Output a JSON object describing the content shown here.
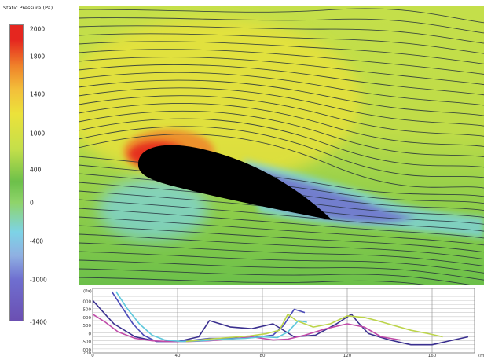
{
  "legend": {
    "title": "Static Pressure (Pa)",
    "ticks": [
      "2000",
      "1800",
      "1400",
      "1000",
      "400",
      "0",
      "-400",
      "-1000",
      "-1400"
    ]
  },
  "colors": {
    "red": "#e5261f",
    "orange": "#f0842a",
    "yellow": "#ece23a",
    "yellow_green": "#c4df4a",
    "green": "#6cc04a",
    "light_green": "#8fd46a",
    "cyan": "#7dd3e6",
    "light_blue": "#8fb0e2",
    "blue_violet": "#6f6fd0",
    "violet": "#6b4fb2",
    "airfoil": "#000000",
    "streamline": "#25303c"
  },
  "chart_data": [
    {
      "type": "heatmap",
      "title": "Static Pressure (Pa)",
      "colorbar_range": [
        -1400,
        2000
      ],
      "colorbar_ticks": [
        2000,
        1800,
        1400,
        1000,
        400,
        0,
        -400,
        -1000,
        -1400
      ],
      "features": [
        "airfoil cross-section",
        "streamlines"
      ]
    },
    {
      "type": "line",
      "ylabel": "(Pa)",
      "xlim": [
        0,
        180
      ],
      "ylim": [
        -1200,
        2500
      ],
      "y_ticks": [
        2000,
        1500,
        1000,
        500,
        0,
        -500,
        -1000,
        -1200
      ],
      "x_ticks": [
        0,
        40,
        80,
        120,
        160
      ],
      "x_unit_partial": "(mm",
      "grid": true,
      "series": [
        {
          "color": "#3a2f8f",
          "points": [
            [
              0,
              2050
            ],
            [
              10,
              600
            ],
            [
              20,
              -200
            ],
            [
              30,
              -480
            ],
            [
              40,
              -500
            ],
            [
              50,
              -200
            ],
            [
              55,
              800
            ],
            [
              65,
              400
            ],
            [
              75,
              300
            ],
            [
              85,
              600
            ],
            [
              95,
              -200
            ],
            [
              105,
              -100
            ],
            [
              115,
              600
            ],
            [
              122,
              1200
            ],
            [
              125,
              700
            ],
            [
              130,
              0
            ],
            [
              140,
              -400
            ],
            [
              150,
              -700
            ],
            [
              160,
              -700
            ],
            [
              170,
              -400
            ],
            [
              177,
              -200
            ]
          ]
        },
        {
          "color": "#4a4ab8",
          "points": [
            [
              9,
              2600
            ],
            [
              14,
              1600
            ],
            [
              19,
              600
            ],
            [
              24,
              -100
            ],
            [
              30,
              -500
            ],
            [
              38,
              -500
            ],
            [
              45,
              -450
            ],
            [
              55,
              -300
            ],
            [
              65,
              -300
            ],
            [
              75,
              -250
            ],
            [
              85,
              -100
            ],
            [
              90,
              500
            ],
            [
              95,
              1500
            ],
            [
              100,
              1300
            ]
          ]
        },
        {
          "color": "#c04aa8",
          "points": [
            [
              0,
              1200
            ],
            [
              6,
              700
            ],
            [
              12,
              100
            ],
            [
              20,
              -300
            ],
            [
              28,
              -450
            ],
            [
              35,
              -500
            ],
            [
              45,
              -500
            ],
            [
              55,
              -450
            ],
            [
              65,
              -350
            ],
            [
              75,
              -200
            ],
            [
              85,
              -400
            ],
            [
              92,
              -350
            ],
            [
              100,
              -100
            ],
            [
              110,
              300
            ],
            [
              120,
              600
            ],
            [
              128,
              400
            ],
            [
              136,
              -200
            ],
            [
              145,
              -400
            ]
          ]
        },
        {
          "color": "#5ec8dc",
          "points": [
            [
              11,
              2600
            ],
            [
              16,
              1600
            ],
            [
              22,
              600
            ],
            [
              28,
              -100
            ],
            [
              34,
              -400
            ],
            [
              42,
              -500
            ],
            [
              52,
              -450
            ],
            [
              62,
              -350
            ],
            [
              72,
              -300
            ],
            [
              80,
              -200
            ],
            [
              87,
              -250
            ],
            [
              92,
              100
            ],
            [
              97,
              800
            ],
            [
              101,
              700
            ]
          ]
        },
        {
          "color": "#bcd44a",
          "points": [
            [
              44,
              -500
            ],
            [
              54,
              -350
            ],
            [
              64,
              -250
            ],
            [
              74,
              -150
            ],
            [
              82,
              0
            ],
            [
              88,
              200
            ],
            [
              92,
              1200
            ],
            [
              96,
              800
            ],
            [
              104,
              400
            ],
            [
              112,
              600
            ],
            [
              120,
              1100
            ],
            [
              128,
              1000
            ],
            [
              134,
              800
            ],
            [
              142,
              500
            ],
            [
              150,
              200
            ],
            [
              158,
              0
            ],
            [
              165,
              -200
            ]
          ]
        }
      ]
    }
  ]
}
